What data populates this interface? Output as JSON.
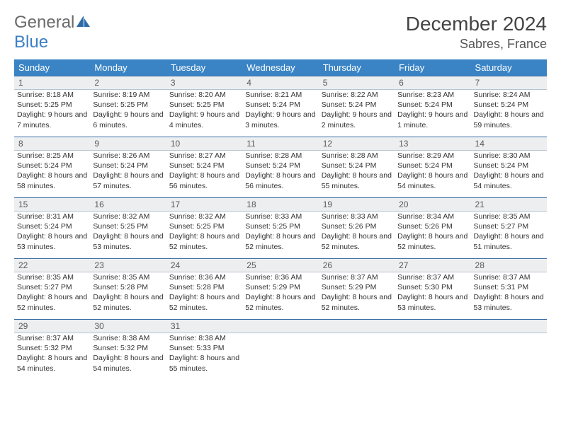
{
  "brand": {
    "part1": "General",
    "part2": "Blue"
  },
  "title": "December 2024",
  "location": "Sabres, France",
  "weekdays": [
    "Sunday",
    "Monday",
    "Tuesday",
    "Wednesday",
    "Thursday",
    "Friday",
    "Saturday"
  ],
  "colors": {
    "header_bg": "#3a84c5",
    "header_text": "#ffffff",
    "daynum_bg": "#eceeef",
    "rule": "#3a6fa5",
    "text": "#333333",
    "brand_gray": "#6a6a6a",
    "brand_blue": "#3a7fc4"
  },
  "days": [
    {
      "n": "1",
      "sr": "8:18 AM",
      "ss": "5:25 PM",
      "dl": "9 hours and 7 minutes."
    },
    {
      "n": "2",
      "sr": "8:19 AM",
      "ss": "5:25 PM",
      "dl": "9 hours and 6 minutes."
    },
    {
      "n": "3",
      "sr": "8:20 AM",
      "ss": "5:25 PM",
      "dl": "9 hours and 4 minutes."
    },
    {
      "n": "4",
      "sr": "8:21 AM",
      "ss": "5:24 PM",
      "dl": "9 hours and 3 minutes."
    },
    {
      "n": "5",
      "sr": "8:22 AM",
      "ss": "5:24 PM",
      "dl": "9 hours and 2 minutes."
    },
    {
      "n": "6",
      "sr": "8:23 AM",
      "ss": "5:24 PM",
      "dl": "9 hours and 1 minute."
    },
    {
      "n": "7",
      "sr": "8:24 AM",
      "ss": "5:24 PM",
      "dl": "8 hours and 59 minutes."
    },
    {
      "n": "8",
      "sr": "8:25 AM",
      "ss": "5:24 PM",
      "dl": "8 hours and 58 minutes."
    },
    {
      "n": "9",
      "sr": "8:26 AM",
      "ss": "5:24 PM",
      "dl": "8 hours and 57 minutes."
    },
    {
      "n": "10",
      "sr": "8:27 AM",
      "ss": "5:24 PM",
      "dl": "8 hours and 56 minutes."
    },
    {
      "n": "11",
      "sr": "8:28 AM",
      "ss": "5:24 PM",
      "dl": "8 hours and 56 minutes."
    },
    {
      "n": "12",
      "sr": "8:28 AM",
      "ss": "5:24 PM",
      "dl": "8 hours and 55 minutes."
    },
    {
      "n": "13",
      "sr": "8:29 AM",
      "ss": "5:24 PM",
      "dl": "8 hours and 54 minutes."
    },
    {
      "n": "14",
      "sr": "8:30 AM",
      "ss": "5:24 PM",
      "dl": "8 hours and 54 minutes."
    },
    {
      "n": "15",
      "sr": "8:31 AM",
      "ss": "5:24 PM",
      "dl": "8 hours and 53 minutes."
    },
    {
      "n": "16",
      "sr": "8:32 AM",
      "ss": "5:25 PM",
      "dl": "8 hours and 53 minutes."
    },
    {
      "n": "17",
      "sr": "8:32 AM",
      "ss": "5:25 PM",
      "dl": "8 hours and 52 minutes."
    },
    {
      "n": "18",
      "sr": "8:33 AM",
      "ss": "5:25 PM",
      "dl": "8 hours and 52 minutes."
    },
    {
      "n": "19",
      "sr": "8:33 AM",
      "ss": "5:26 PM",
      "dl": "8 hours and 52 minutes."
    },
    {
      "n": "20",
      "sr": "8:34 AM",
      "ss": "5:26 PM",
      "dl": "8 hours and 52 minutes."
    },
    {
      "n": "21",
      "sr": "8:35 AM",
      "ss": "5:27 PM",
      "dl": "8 hours and 51 minutes."
    },
    {
      "n": "22",
      "sr": "8:35 AM",
      "ss": "5:27 PM",
      "dl": "8 hours and 52 minutes."
    },
    {
      "n": "23",
      "sr": "8:35 AM",
      "ss": "5:28 PM",
      "dl": "8 hours and 52 minutes."
    },
    {
      "n": "24",
      "sr": "8:36 AM",
      "ss": "5:28 PM",
      "dl": "8 hours and 52 minutes."
    },
    {
      "n": "25",
      "sr": "8:36 AM",
      "ss": "5:29 PM",
      "dl": "8 hours and 52 minutes."
    },
    {
      "n": "26",
      "sr": "8:37 AM",
      "ss": "5:29 PM",
      "dl": "8 hours and 52 minutes."
    },
    {
      "n": "27",
      "sr": "8:37 AM",
      "ss": "5:30 PM",
      "dl": "8 hours and 53 minutes."
    },
    {
      "n": "28",
      "sr": "8:37 AM",
      "ss": "5:31 PM",
      "dl": "8 hours and 53 minutes."
    },
    {
      "n": "29",
      "sr": "8:37 AM",
      "ss": "5:32 PM",
      "dl": "8 hours and 54 minutes."
    },
    {
      "n": "30",
      "sr": "8:38 AM",
      "ss": "5:32 PM",
      "dl": "8 hours and 54 minutes."
    },
    {
      "n": "31",
      "sr": "8:38 AM",
      "ss": "5:33 PM",
      "dl": "8 hours and 55 minutes."
    }
  ],
  "labels": {
    "sunrise": "Sunrise:",
    "sunset": "Sunset:",
    "daylight": "Daylight:"
  }
}
